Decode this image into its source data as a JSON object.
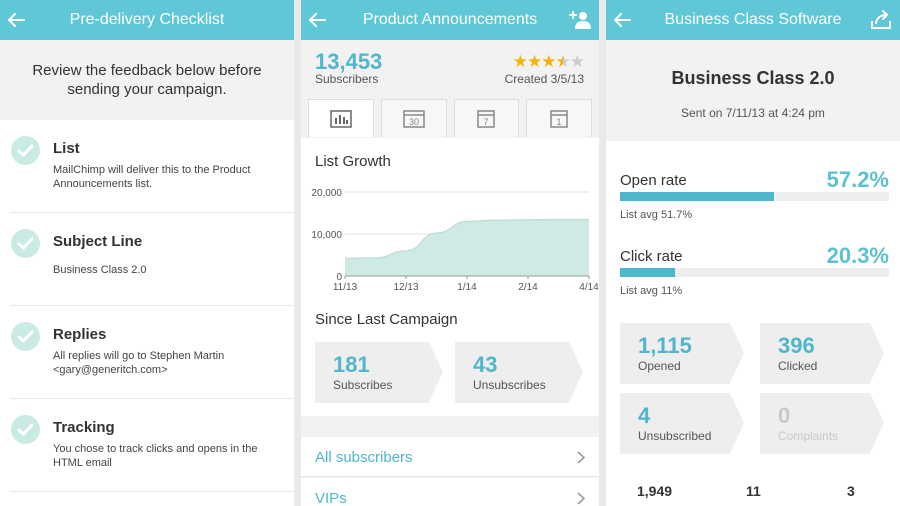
{
  "checklist": {
    "title": "Pre-delivery Checklist",
    "intro": "Review the feedback below before sending your campaign.",
    "items": [
      {
        "title": "List",
        "desc": "MailChimp will deliver this to the Product Announcements list."
      },
      {
        "title": "Subject Line",
        "desc": "Business Class 2.0"
      },
      {
        "title": "Replies",
        "desc": "All replies will go to Stephen Martin <gary@generitch.com>"
      },
      {
        "title": "Tracking",
        "desc": "You chose to track clicks and opens in the HTML email"
      }
    ]
  },
  "list": {
    "title": "Product Announcements",
    "subscribers_count": "13,453",
    "subscribers_label": "Subscribers",
    "rating": 3.5,
    "created": "Created 3/5/13",
    "tabs": [
      {
        "icon": "bar-chart-icon",
        "label": ""
      },
      {
        "icon": "calendar-icon",
        "label": "30"
      },
      {
        "icon": "calendar-icon",
        "label": "7"
      },
      {
        "icon": "calendar-icon",
        "label": "1"
      }
    ],
    "growth_title": "List Growth",
    "since_title": "Since Last Campaign",
    "subscribes_count": "181",
    "subscribes_label": "Subscribes",
    "unsubscribes_count": "43",
    "unsubscribes_label": "Unsubscribes",
    "rows": [
      "All subscribers",
      "VIPs"
    ]
  },
  "chart_data": {
    "type": "area",
    "title": "List Growth",
    "xlabel": "",
    "ylabel": "",
    "x": [
      "11/13",
      "12/13",
      "1/14",
      "2/14",
      "4/14"
    ],
    "x_positions": [
      0,
      1,
      2,
      3,
      4
    ],
    "series": [
      {
        "x": [
          0,
          0.5,
          1.0,
          1.5,
          2.0,
          2.5,
          3.0,
          3.5,
          4.0
        ],
        "values": [
          4200,
          4300,
          6000,
          10200,
          13000,
          13300,
          13400,
          13450,
          13453
        ]
      }
    ],
    "yticks": [
      "0",
      "10,000",
      "20,000"
    ],
    "ylim": [
      0,
      20000
    ],
    "grid": true,
    "color": "#cfeae4"
  },
  "campaign": {
    "header_title": "Business Class Software",
    "name": "Business Class 2.0",
    "sent": "Sent on 7/11/13 at 4:24 pm",
    "open_label": "Open rate",
    "open_value": "57.2%",
    "open_fraction": 0.572,
    "open_avg": "List avg 51.7%",
    "click_label": "Click rate",
    "click_value": "20.3%",
    "click_fraction": 0.203,
    "click_avg": "List avg 11%",
    "opened_count": "1,115",
    "opened_label": "Opened",
    "clicked_count": "396",
    "clicked_label": "Clicked",
    "unsub_count": "4",
    "unsub_label": "Unsubscribed",
    "complaints_count": "0",
    "complaints_label": "Complaints",
    "bottom": [
      "1,949",
      "11",
      "3"
    ]
  },
  "colors": {
    "accent": "#5fc7d6",
    "value_blue": "#4fb7cc",
    "check_green": "#c9ebe3",
    "star": "#f4b400"
  }
}
